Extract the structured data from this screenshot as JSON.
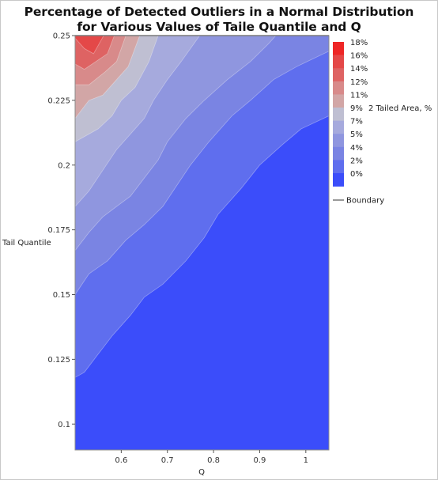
{
  "chart_data": {
    "type": "contour",
    "title": "Percentage of Detected Outliers in a Normal Distribution",
    "subtitle": "for Various Values of Taile Quantile and Q",
    "xlabel": "Q",
    "ylabel": "Tail Quantile",
    "xlim": [
      0.5,
      1.05
    ],
    "ylim": [
      0.09,
      0.25
    ],
    "x_ticks": [
      "0.6",
      "0.7",
      "0.8",
      "0.9",
      "1"
    ],
    "x_tick_values": [
      0.6,
      0.7,
      0.8,
      0.9,
      1.0
    ],
    "y_ticks": [
      "0.1",
      "0.125",
      "0.15",
      "0.175",
      "0.2",
      "0.225",
      "0.25"
    ],
    "y_tick_values": [
      0.1,
      0.125,
      0.15,
      0.175,
      0.2,
      0.225,
      0.25
    ],
    "legend_title": "2 Tailed Area, %",
    "legend_levels": [
      "18%",
      "16%",
      "14%",
      "12%",
      "11%",
      "9%",
      "7%",
      "5%",
      "4%",
      "2%",
      "0%"
    ],
    "legend_placement": "right",
    "boundary_label": "Boundary",
    "band_colors": [
      "#ee2626",
      "#e44848",
      "#de6363",
      "#d88a8a",
      "#d2a6a6",
      "#bfbfd2",
      "#a6aadd",
      "#8f96df",
      "#7a84e3",
      "#5f6eee",
      "#3b4dfa"
    ],
    "contours": [
      {
        "level": 16,
        "points": [
          [
            0.5,
            0.249
          ],
          [
            0.52,
            0.245
          ],
          [
            0.54,
            0.243
          ],
          [
            0.562,
            0.25
          ]
        ]
      },
      {
        "level": 14,
        "points": [
          [
            0.5,
            0.239
          ],
          [
            0.52,
            0.237
          ],
          [
            0.545,
            0.24
          ],
          [
            0.57,
            0.243
          ],
          [
            0.585,
            0.25
          ]
        ]
      },
      {
        "level": 12,
        "points": [
          [
            0.5,
            0.231
          ],
          [
            0.53,
            0.231
          ],
          [
            0.565,
            0.236
          ],
          [
            0.59,
            0.24
          ],
          [
            0.61,
            0.25
          ]
        ]
      },
      {
        "level": 11,
        "points": [
          [
            0.5,
            0.218
          ],
          [
            0.53,
            0.225
          ],
          [
            0.56,
            0.227
          ],
          [
            0.58,
            0.231
          ],
          [
            0.615,
            0.238
          ],
          [
            0.64,
            0.25
          ]
        ]
      },
      {
        "level": 9,
        "points": [
          [
            0.5,
            0.209
          ],
          [
            0.53,
            0.212
          ],
          [
            0.55,
            0.214
          ],
          [
            0.58,
            0.219
          ],
          [
            0.6,
            0.225
          ],
          [
            0.63,
            0.23
          ],
          [
            0.66,
            0.24
          ],
          [
            0.68,
            0.25
          ]
        ]
      },
      {
        "level": 7,
        "points": [
          [
            0.5,
            0.184
          ],
          [
            0.53,
            0.19
          ],
          [
            0.56,
            0.198
          ],
          [
            0.59,
            0.206
          ],
          [
            0.62,
            0.212
          ],
          [
            0.65,
            0.218
          ],
          [
            0.67,
            0.225
          ],
          [
            0.7,
            0.233
          ],
          [
            0.73,
            0.24
          ],
          [
            0.77,
            0.25
          ]
        ]
      },
      {
        "level": 5,
        "points": [
          [
            0.5,
            0.167
          ],
          [
            0.53,
            0.174
          ],
          [
            0.56,
            0.18
          ],
          [
            0.59,
            0.184
          ],
          [
            0.62,
            0.188
          ],
          [
            0.65,
            0.195
          ],
          [
            0.68,
            0.202
          ],
          [
            0.7,
            0.209
          ],
          [
            0.74,
            0.218
          ],
          [
            0.78,
            0.225
          ],
          [
            0.83,
            0.233
          ],
          [
            0.88,
            0.24
          ],
          [
            0.92,
            0.247
          ],
          [
            0.935,
            0.25
          ]
        ]
      },
      {
        "level": 4,
        "points": [
          [
            0.5,
            0.15
          ],
          [
            0.53,
            0.158
          ],
          [
            0.57,
            0.163
          ],
          [
            0.61,
            0.171
          ],
          [
            0.65,
            0.177
          ],
          [
            0.69,
            0.184
          ],
          [
            0.72,
            0.192
          ],
          [
            0.75,
            0.2
          ],
          [
            0.79,
            0.209
          ],
          [
            0.84,
            0.219
          ],
          [
            0.88,
            0.225
          ],
          [
            0.93,
            0.233
          ],
          [
            0.98,
            0.238
          ],
          [
            1.05,
            0.244
          ]
        ]
      },
      {
        "level": 2,
        "points": [
          [
            0.5,
            0.118
          ],
          [
            0.52,
            0.12
          ],
          [
            0.55,
            0.127
          ],
          [
            0.58,
            0.134
          ],
          [
            0.62,
            0.142
          ],
          [
            0.65,
            0.149
          ],
          [
            0.69,
            0.154
          ],
          [
            0.74,
            0.163
          ],
          [
            0.78,
            0.172
          ],
          [
            0.81,
            0.181
          ],
          [
            0.86,
            0.191
          ],
          [
            0.9,
            0.2
          ],
          [
            0.95,
            0.208
          ],
          [
            0.99,
            0.214
          ],
          [
            1.05,
            0.219
          ]
        ]
      }
    ]
  }
}
